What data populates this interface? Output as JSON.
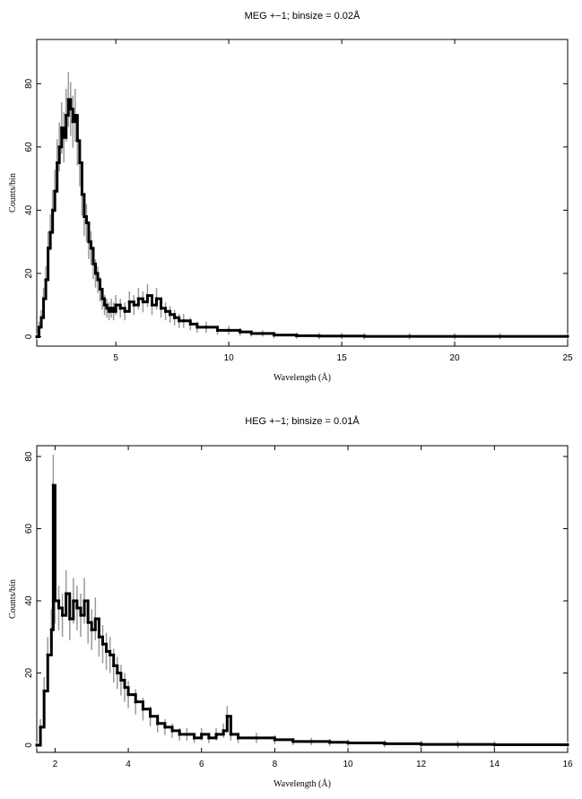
{
  "chart_data": [
    {
      "type": "line",
      "title": "MEG +−1; binsize = 0.02Å",
      "xlabel": "Wavelength (Å)",
      "ylabel": "Counts/bin",
      "xlim": [
        1.5,
        25
      ],
      "ylim": [
        -3,
        94
      ],
      "xticks": [
        5,
        10,
        15,
        20,
        25
      ],
      "yticks": [
        0,
        20,
        40,
        60,
        80
      ],
      "grid": false,
      "series": [
        {
          "values_x": [
            1.5,
            1.6,
            1.7,
            1.8,
            1.9,
            2.0,
            2.1,
            2.2,
            2.3,
            2.4,
            2.5,
            2.6,
            2.7,
            2.8,
            2.9,
            3.0,
            3.1,
            3.2,
            3.3,
            3.4,
            3.5,
            3.6,
            3.7,
            3.8,
            3.9,
            4.0,
            4.1,
            4.2,
            4.3,
            4.4,
            4.5,
            4.6,
            4.7,
            4.8,
            4.9,
            5.0,
            5.2,
            5.4,
            5.6,
            5.8,
            6.0,
            6.2,
            6.4,
            6.6,
            6.8,
            7.0,
            7.2,
            7.4,
            7.6,
            7.8,
            8.0,
            8.3,
            8.6,
            9.0,
            9.5,
            10.0,
            10.5,
            11.0,
            11.5,
            12.0,
            13.0,
            14.0,
            15.0,
            16.0,
            18.0,
            20.0,
            22.0,
            25.0
          ],
          "values_y": [
            0,
            3,
            6,
            12,
            18,
            28,
            33,
            40,
            46,
            55,
            60,
            66,
            63,
            70,
            75,
            72,
            68,
            70,
            62,
            55,
            45,
            38,
            36,
            30,
            28,
            23,
            20,
            18,
            15,
            12,
            10,
            9,
            8,
            9,
            8,
            10,
            9,
            8,
            11,
            10,
            12,
            11,
            13,
            10,
            12,
            9,
            8,
            7,
            6,
            5,
            5,
            4,
            3,
            3,
            2,
            2,
            1.5,
            1,
            1,
            0.5,
            0.3,
            0.2,
            0.2,
            0.1,
            0.1,
            0.1,
            0.1,
            0.1
          ]
        }
      ]
    },
    {
      "type": "line",
      "title": "HEG +−1; binsize = 0.01Å",
      "xlabel": "Wavelength (Å)",
      "ylabel": "Counts/bin",
      "xlim": [
        1.5,
        16
      ],
      "ylim": [
        -2,
        83
      ],
      "xticks": [
        2,
        4,
        6,
        8,
        10,
        12,
        14,
        16
      ],
      "yticks": [
        0,
        20,
        40,
        60,
        80
      ],
      "grid": false,
      "series": [
        {
          "values_x": [
            1.5,
            1.6,
            1.7,
            1.8,
            1.9,
            1.95,
            2.0,
            2.1,
            2.2,
            2.3,
            2.4,
            2.5,
            2.6,
            2.7,
            2.8,
            2.9,
            3.0,
            3.1,
            3.2,
            3.3,
            3.4,
            3.5,
            3.6,
            3.7,
            3.8,
            3.9,
            4.0,
            4.2,
            4.4,
            4.6,
            4.8,
            5.0,
            5.2,
            5.4,
            5.6,
            5.8,
            6.0,
            6.2,
            6.4,
            6.6,
            6.7,
            6.8,
            7.0,
            7.5,
            8.0,
            8.5,
            9.0,
            9.5,
            10.0,
            11.0,
            12.0,
            13.0,
            14.0,
            16.0
          ],
          "values_y": [
            0,
            5,
            15,
            25,
            32,
            72,
            40,
            38,
            36,
            42,
            35,
            40,
            38,
            36,
            40,
            34,
            32,
            35,
            30,
            28,
            26,
            25,
            22,
            20,
            18,
            16,
            14,
            12,
            10,
            8,
            6,
            5,
            4,
            3,
            3,
            2,
            3,
            2,
            3,
            4,
            8,
            3,
            2,
            2,
            1.5,
            1,
            1,
            0.8,
            0.6,
            0.4,
            0.2,
            0.2,
            0.1,
            0.1
          ]
        }
      ]
    }
  ]
}
